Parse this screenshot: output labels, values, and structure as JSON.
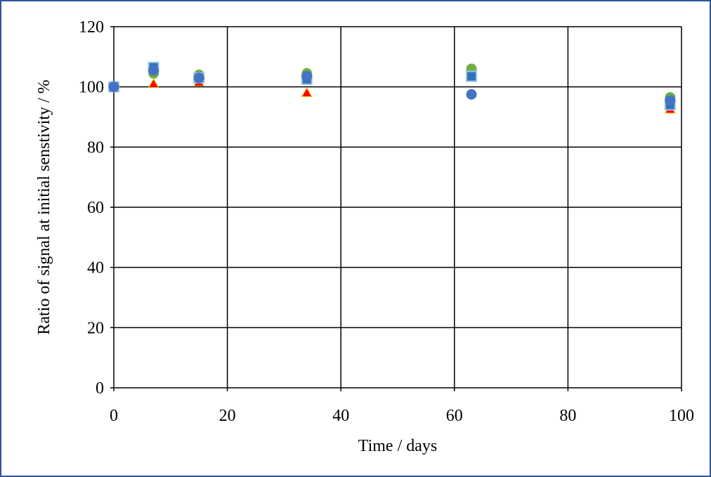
{
  "chart_data": {
    "type": "scatter",
    "title": "",
    "xlabel": "Time / days",
    "ylabel": "Ratio of signal at initial senstivity / %",
    "xlim": [
      0,
      100
    ],
    "ylim": [
      0,
      120
    ],
    "xticks": [
      0,
      20,
      40,
      60,
      80,
      100
    ],
    "yticks": [
      0,
      20,
      40,
      60,
      80,
      100,
      120
    ],
    "grid": true,
    "legend": "none",
    "series": [
      {
        "marker": "triangle",
        "color": "#ff0000",
        "edge_color": "#ffc000",
        "points": [
          [
            0,
            100
          ],
          [
            7,
            101
          ],
          [
            15,
            101.5
          ],
          [
            34,
            98
          ],
          [
            63,
            103.5
          ],
          [
            98,
            92.5
          ]
        ]
      },
      {
        "marker": "circle",
        "color": "#70ad47",
        "edge_color": "#70ad47",
        "points": [
          [
            0,
            100
          ],
          [
            7,
            104.5
          ],
          [
            15,
            104
          ],
          [
            34,
            104.5
          ],
          [
            63,
            106
          ],
          [
            98,
            96.5
          ]
        ]
      },
      {
        "marker": "square",
        "color": "#2e75b6",
        "edge_color": "#9dc3e6",
        "points": [
          [
            0,
            100
          ],
          [
            7,
            106.5
          ],
          [
            15,
            103
          ],
          [
            34,
            102.5
          ],
          [
            63,
            103.5
          ],
          [
            98,
            94
          ]
        ]
      },
      {
        "marker": "circle",
        "color": "#4472c4",
        "edge_color": "#4472c4",
        "points": [
          [
            0,
            100
          ],
          [
            7,
            105.5
          ],
          [
            15,
            103
          ],
          [
            34,
            103.5
          ],
          [
            63,
            97.5
          ],
          [
            98,
            95.5
          ]
        ]
      }
    ]
  }
}
